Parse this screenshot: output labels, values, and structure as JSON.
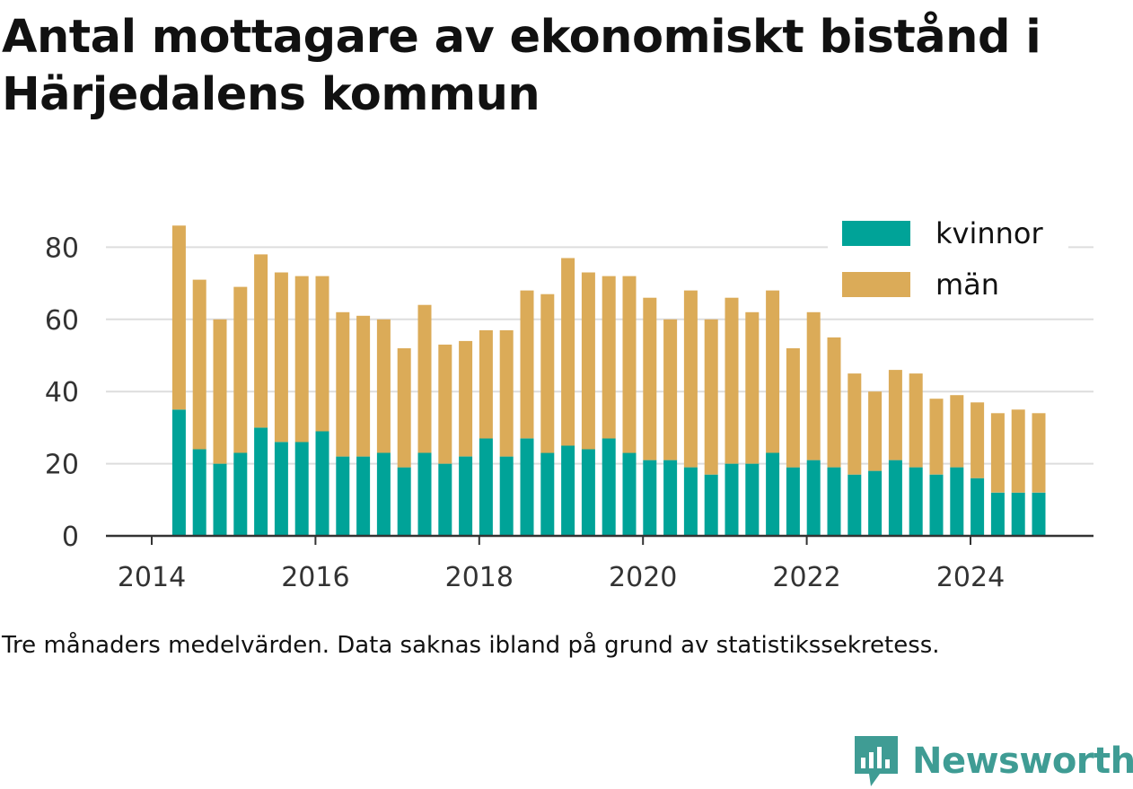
{
  "title": "Antal mottagare av ekonomiskt bistånd i Härjedalens kommun",
  "caption": "Tre månaders medelvärden. Data saknas ibland på grund av statistikssekretess.",
  "brand": {
    "name": "Newsworthy",
    "icon": "newsworthy-logo-icon",
    "color": "#3f9c94"
  },
  "chart_data": {
    "type": "bar",
    "stacked": true,
    "x_ticks": [
      "2014",
      "2016",
      "2018",
      "2020",
      "2022",
      "2024"
    ],
    "y_ticks": [
      "0",
      "20",
      "40",
      "60",
      "80"
    ],
    "ylim": [
      0,
      90
    ],
    "grid": "horizontal",
    "legend_position": "top-right",
    "x": [
      "2014-05",
      "2014-08",
      "2014-11",
      "2015-02",
      "2015-05",
      "2015-08",
      "2015-11",
      "2016-02",
      "2016-05",
      "2016-08",
      "2016-11",
      "2017-02",
      "2017-05",
      "2017-08",
      "2017-11",
      "2018-02",
      "2018-05",
      "2018-08",
      "2018-11",
      "2019-02",
      "2019-05",
      "2019-08",
      "2019-11",
      "2020-02",
      "2020-05",
      "2020-08",
      "2020-11",
      "2021-02",
      "2021-05",
      "2021-08",
      "2021-11",
      "2022-02",
      "2022-05",
      "2022-08",
      "2022-11",
      "2023-02",
      "2023-05",
      "2023-08",
      "2023-11",
      "2024-02",
      "2024-05",
      "2024-08",
      "2024-11"
    ],
    "series": [
      {
        "name": "kvinnor",
        "color": "#00a398",
        "values": [
          35,
          24,
          20,
          23,
          30,
          26,
          26,
          29,
          22,
          22,
          23,
          19,
          23,
          20,
          22,
          27,
          22,
          27,
          23,
          25,
          24,
          27,
          23,
          21,
          21,
          19,
          17,
          20,
          20,
          23,
          19,
          21,
          19,
          17,
          18,
          21,
          19,
          17,
          19,
          16,
          12,
          12,
          12
        ]
      },
      {
        "name": "män",
        "color": "#dbab58",
        "values": [
          51,
          47,
          40,
          46,
          48,
          47,
          46,
          43,
          40,
          39,
          37,
          33,
          41,
          33,
          32,
          30,
          35,
          41,
          44,
          52,
          49,
          45,
          49,
          45,
          39,
          49,
          43,
          46,
          42,
          45,
          33,
          41,
          36,
          28,
          22,
          25,
          26,
          21,
          20,
          21,
          22,
          23,
          22
        ]
      }
    ]
  }
}
